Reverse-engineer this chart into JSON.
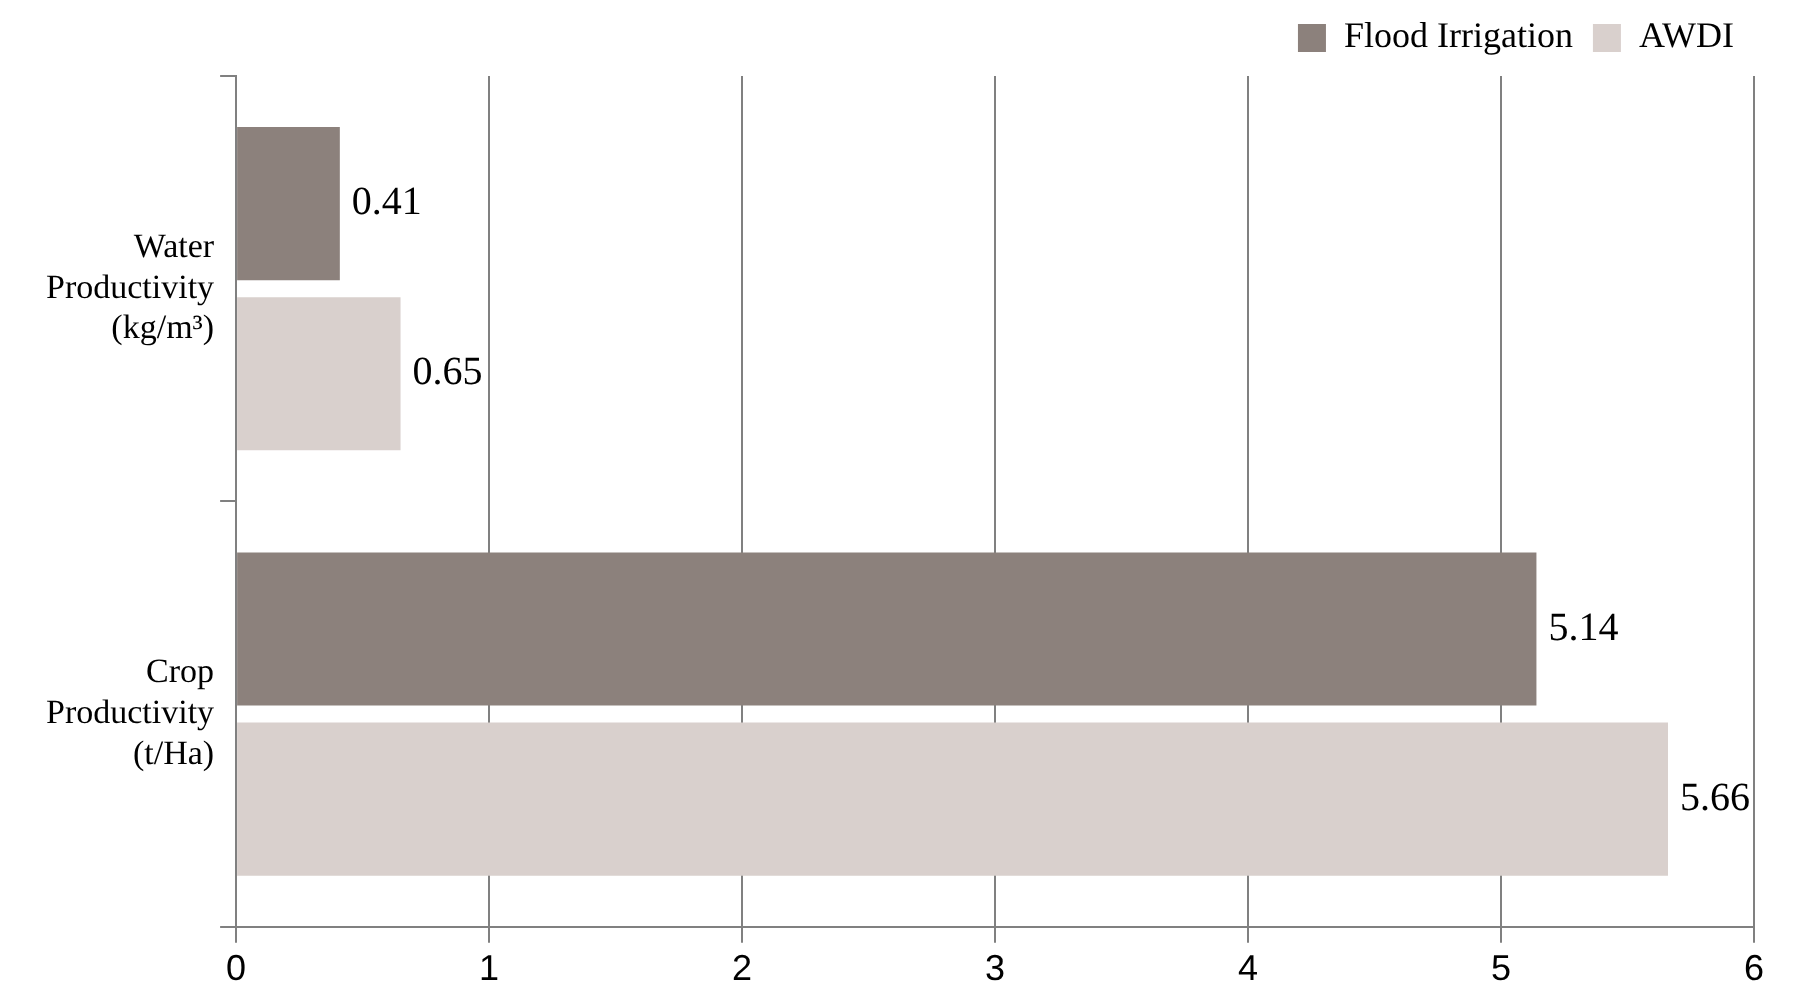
{
  "chart_data": {
    "type": "bar",
    "orientation": "horizontal",
    "categories": [
      "Water Productivity (kg/m³)",
      "Crop Productivity (t/Ha)"
    ],
    "series": [
      {
        "name": "Flood Irrigation",
        "color": "#8c817c",
        "values": [
          0.41,
          5.14
        ]
      },
      {
        "name": "AWDI",
        "color": "#d9d0cd",
        "values": [
          0.65,
          5.66
        ]
      }
    ],
    "xlim": [
      0,
      6
    ],
    "xticks": [
      0,
      1,
      2,
      3,
      4,
      5,
      6
    ],
    "grid": "x",
    "legend": "top right",
    "data_labels": true
  }
}
